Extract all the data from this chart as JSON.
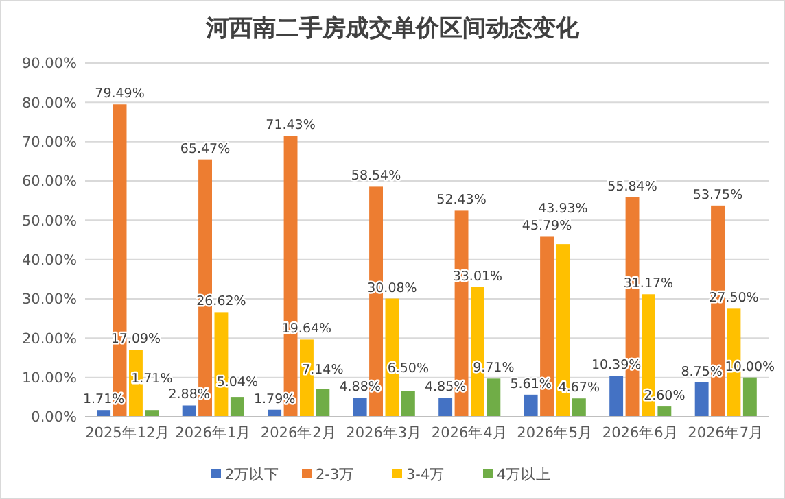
{
  "chart_data": {
    "type": "bar",
    "title": "河西南二手房成交单价区间动态变化",
    "categories": [
      "2025年12月",
      "2026年1月",
      "2026年2月",
      "2026年3月",
      "2026年4月",
      "2026年5月",
      "2026年6月",
      "2026年7月"
    ],
    "series": [
      {
        "name": "2万以下",
        "color": "#4472c4",
        "values": [
          1.71,
          2.88,
          1.79,
          4.88,
          4.85,
          5.61,
          10.39,
          8.75
        ],
        "value_labels": [
          "1.71%",
          "2.88%",
          "1.79%",
          "4.88%",
          "4.85%",
          "5.61%",
          "10.39%",
          "8.75%"
        ]
      },
      {
        "name": "2-3万",
        "color": "#ed7d31",
        "values": [
          79.49,
          65.47,
          71.43,
          58.54,
          52.43,
          45.79,
          55.84,
          53.75
        ],
        "value_labels": [
          "79.49%",
          "65.47%",
          "71.43%",
          "58.54%",
          "52.43%",
          "45.79%",
          "55.84%",
          "53.75%"
        ]
      },
      {
        "name": "3-4万",
        "color": "#ffc000",
        "values": [
          17.09,
          26.62,
          19.64,
          30.08,
          33.01,
          43.93,
          31.17,
          27.5
        ],
        "value_labels": [
          "17.09%",
          "26.62%",
          "19.64%",
          "30.08%",
          "33.01%",
          "43.93%",
          "31.17%",
          "27.50%"
        ]
      },
      {
        "name": "4万以上",
        "color": "#70ad47",
        "values": [
          1.71,
          5.04,
          7.14,
          6.5,
          9.71,
          4.67,
          2.6,
          10.0
        ],
        "value_labels": [
          "1.71%",
          "5.04%",
          "7.14%",
          "6.50%",
          "9.71%",
          "4.67%",
          "2.60%",
          "10.00%"
        ]
      }
    ],
    "ylim": [
      0,
      90
    ],
    "yticks": [
      {
        "value": 0,
        "label": "0.00%"
      },
      {
        "value": 10,
        "label": "10.00%"
      },
      {
        "value": 20,
        "label": "20.00%"
      },
      {
        "value": 30,
        "label": "30.00%"
      },
      {
        "value": 40,
        "label": "40.00%"
      },
      {
        "value": 50,
        "label": "50.00%"
      },
      {
        "value": 60,
        "label": "60.00%"
      },
      {
        "value": 70,
        "label": "70.00%"
      },
      {
        "value": 80,
        "label": "80.00%"
      },
      {
        "value": 90,
        "label": "90.00%"
      }
    ],
    "grid": "y",
    "legend": "bottom"
  }
}
